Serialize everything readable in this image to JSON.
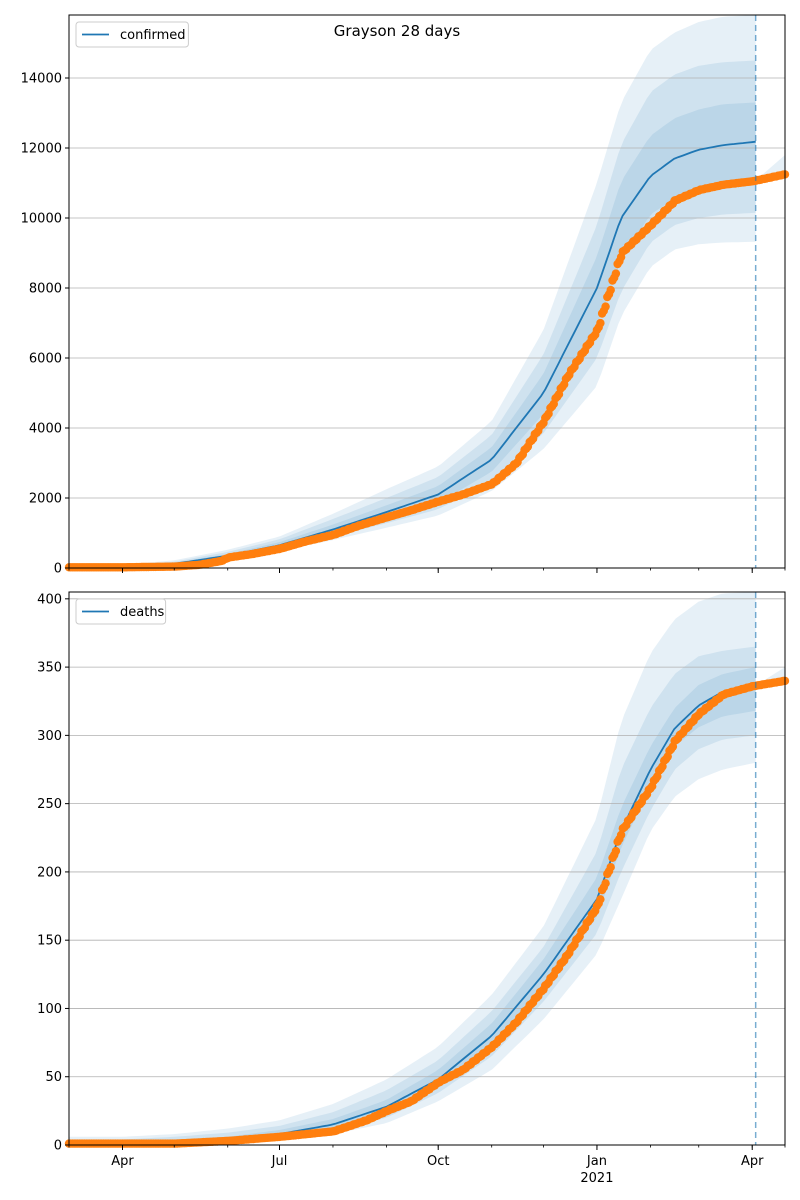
{
  "figure": {
    "title": "Grayson 28 days",
    "colors": {
      "model": "#1f77b4",
      "observed": "#ff7f0e",
      "grid": "#b0b0b0",
      "band": "#1f77b4"
    }
  },
  "chart_data": [
    {
      "type": "line",
      "title": "Grayson 28 days",
      "legend": [
        "confirmed"
      ],
      "legend_position": "top-left",
      "grid": "y",
      "xlabel": "",
      "ylabel": "",
      "x_range": [
        "2020-03-01",
        "2021-04-20"
      ],
      "ylim": [
        0,
        15800
      ],
      "x_ticks": [
        {
          "date": "2020-04-01",
          "label": "Apr"
        },
        {
          "date": "2020-07-01",
          "label": "Jul"
        },
        {
          "date": "2020-10-01",
          "label": "Oct"
        },
        {
          "date": "2021-01-01",
          "label": "Jan",
          "sub": "2021"
        },
        {
          "date": "2021-04-01",
          "label": "Apr"
        }
      ],
      "y_ticks": [
        0,
        2000,
        4000,
        6000,
        8000,
        10000,
        12000,
        14000
      ],
      "forecast_line_date": "2021-04-03",
      "model": {
        "name": "confirmed",
        "dates": [
          "2020-03-01",
          "2020-04-01",
          "2020-05-01",
          "2020-06-01",
          "2020-07-01",
          "2020-08-01",
          "2020-09-01",
          "2020-10-01",
          "2020-11-01",
          "2020-12-01",
          "2021-01-01",
          "2021-01-15",
          "2021-02-01",
          "2021-02-15",
          "2021-03-01",
          "2021-03-15",
          "2021-04-03"
        ],
        "median": [
          30,
          40,
          120,
          350,
          650,
          1100,
          1600,
          2100,
          3100,
          5000,
          8000,
          10000,
          11200,
          11700,
          11950,
          12080,
          12180
        ],
        "bands": [
          {
            "low": [
              0,
              10,
              50,
              220,
              480,
              800,
              1150,
              1500,
              2200,
              3400,
              5200,
              7200,
              8600,
              9100,
              9250,
              9300,
              9320
            ],
            "high": [
              80,
              90,
              220,
              520,
              900,
              1550,
              2250,
              2900,
              4200,
              6800,
              11000,
              13300,
              14800,
              15300,
              15600,
              15750,
              15800
            ]
          },
          {
            "low": [
              10,
              20,
              70,
              260,
              530,
              890,
              1280,
              1680,
              2450,
              3850,
              6000,
              7900,
              9300,
              9800,
              10000,
              10100,
              10150
            ],
            "high": [
              60,
              70,
              180,
              460,
              820,
              1400,
              2000,
              2600,
              3800,
              6100,
              9800,
              12100,
              13600,
              14100,
              14350,
              14450,
              14500
            ]
          },
          {
            "low": [
              20,
              30,
              90,
              300,
              580,
              980,
              1420,
              1860,
              2750,
              4400,
              6900,
              8800,
              10100,
              10550,
              10800,
              10900,
              10950
            ],
            "high": [
              45,
              55,
              150,
              400,
              740,
              1240,
              1790,
              2340,
              3450,
              5550,
              8900,
              11050,
              12350,
              12850,
              13100,
              13250,
              13300
            ]
          }
        ]
      },
      "observed": {
        "dates": [
          "2020-03-01",
          "2020-04-01",
          "2020-05-01",
          "2020-05-15",
          "2020-05-28",
          "2020-06-01",
          "2020-06-15",
          "2020-07-01",
          "2020-07-15",
          "2020-08-01",
          "2020-08-15",
          "2020-09-01",
          "2020-09-15",
          "2020-10-01",
          "2020-10-15",
          "2020-11-01",
          "2020-11-15",
          "2020-12-01",
          "2020-12-15",
          "2021-01-01",
          "2021-01-15",
          "2021-02-01",
          "2021-02-15",
          "2021-03-01",
          "2021-03-15",
          "2021-04-01",
          "2021-04-20"
        ],
        "values": [
          20,
          20,
          40,
          90,
          200,
          300,
          400,
          550,
          750,
          950,
          1200,
          1450,
          1650,
          1900,
          2100,
          2400,
          3000,
          4200,
          5500,
          6800,
          9000,
          9800,
          10500,
          10800,
          10950,
          11050,
          11250
        ]
      },
      "observed_future_high": [
        11250,
        11800
      ]
    },
    {
      "type": "line",
      "title": "",
      "legend": [
        "deaths"
      ],
      "legend_position": "top-left",
      "grid": "y",
      "xlabel": "",
      "ylabel": "",
      "x_range": [
        "2020-03-01",
        "2021-04-20"
      ],
      "ylim": [
        0,
        405
      ],
      "x_ticks": [
        {
          "date": "2020-04-01",
          "label": "Apr"
        },
        {
          "date": "2020-07-01",
          "label": "Jul"
        },
        {
          "date": "2020-10-01",
          "label": "Oct"
        },
        {
          "date": "2021-01-01",
          "label": "Jan",
          "sub": "2021"
        },
        {
          "date": "2021-04-01",
          "label": "Apr"
        }
      ],
      "y_ticks": [
        0,
        50,
        100,
        150,
        200,
        250,
        300,
        350,
        400
      ],
      "forecast_line_date": "2021-04-03",
      "model": {
        "name": "deaths",
        "dates": [
          "2020-03-01",
          "2020-04-01",
          "2020-05-01",
          "2020-06-01",
          "2020-07-01",
          "2020-08-01",
          "2020-09-01",
          "2020-10-01",
          "2020-11-01",
          "2020-12-01",
          "2021-01-01",
          "2021-01-15",
          "2021-02-01",
          "2021-02-15",
          "2021-03-01",
          "2021-03-15",
          "2021-04-03"
        ],
        "median": [
          1,
          1,
          2,
          4,
          8,
          15,
          28,
          48,
          80,
          125,
          180,
          230,
          275,
          305,
          322,
          332,
          338
        ],
        "bands": [
          {
            "low": [
              0,
              0,
              0,
              1,
              3,
              8,
              16,
              32,
              55,
              92,
              140,
              180,
              230,
              255,
              268,
              275,
              280
            ],
            "high": [
              6,
              6,
              8,
              12,
              18,
              30,
              48,
              72,
              110,
              160,
              240,
              310,
              360,
              385,
              398,
              404,
              405
            ]
          },
          {
            "low": [
              0,
              0,
              1,
              2,
              5,
              10,
              20,
              38,
              65,
              105,
              155,
              200,
              245,
              275,
              290,
              297,
              300
            ],
            "high": [
              4,
              4,
              6,
              9,
              14,
              24,
              40,
              62,
              98,
              145,
              215,
              275,
              320,
              345,
              358,
              362,
              365
            ]
          },
          {
            "low": [
              0,
              0,
              1,
              3,
              6,
              12,
              24,
              42,
              72,
              115,
              167,
              218,
              262,
              292,
              306,
              314,
              318
            ],
            "high": [
              3,
              3,
              4,
              6,
              11,
              19,
              33,
              55,
              89,
              136,
              196,
              247,
              292,
              320,
              337,
              345,
              350
            ]
          }
        ]
      },
      "observed": {
        "dates": [
          "2020-03-01",
          "2020-04-01",
          "2020-05-01",
          "2020-06-01",
          "2020-07-01",
          "2020-08-01",
          "2020-08-20",
          "2020-09-01",
          "2020-09-15",
          "2020-10-01",
          "2020-10-15",
          "2020-11-01",
          "2020-11-15",
          "2020-12-01",
          "2020-12-15",
          "2021-01-01",
          "2021-01-15",
          "2021-02-01",
          "2021-02-15",
          "2021-03-01",
          "2021-03-15",
          "2021-04-01",
          "2021-04-20"
        ],
        "values": [
          1,
          1,
          1,
          3,
          6,
          10,
          18,
          25,
          32,
          46,
          55,
          72,
          90,
          115,
          140,
          175,
          230,
          262,
          296,
          316,
          330,
          336,
          340
        ]
      },
      "observed_future_high": [
        340,
        350
      ]
    }
  ]
}
